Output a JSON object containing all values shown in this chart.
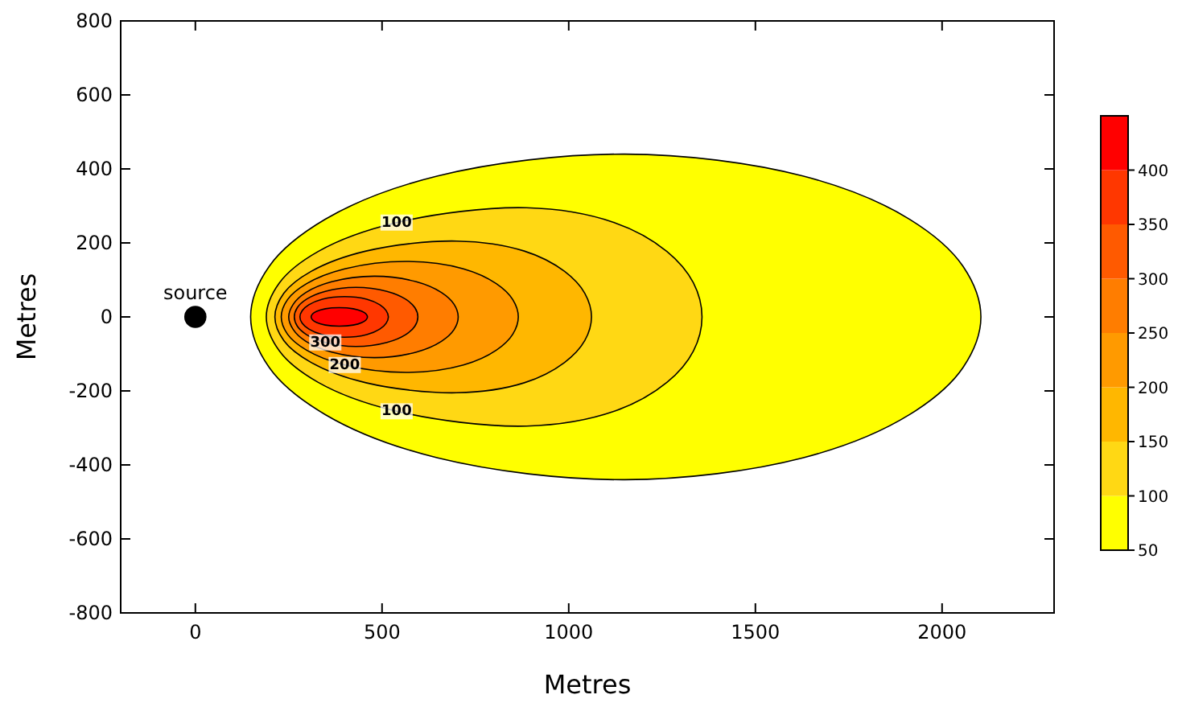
{
  "chart_data": {
    "type": "area",
    "xlabel": "Metres",
    "ylabel": "Metres",
    "xlim": [
      -200,
      2300
    ],
    "ylim": [
      -800,
      800
    ],
    "xticks": [
      0,
      500,
      1000,
      1500,
      2000
    ],
    "yticks": [
      -800,
      -600,
      -400,
      -200,
      0,
      200,
      400,
      600,
      800
    ],
    "clim": [
      50,
      450
    ],
    "cticks": [
      50,
      100,
      150,
      200,
      250,
      300,
      350,
      400
    ],
    "series": [
      {
        "color": "#ffff00",
        "x": [
          148,
          198,
          348,
          649,
          1150,
          1627,
          1913,
          2056,
          2104,
          2056,
          1913,
          1627,
          1150,
          649,
          348,
          198
        ],
        "values": [
          0,
          137,
          264,
          381,
          440,
          381,
          264,
          137,
          0,
          -137,
          -264,
          -381,
          -440,
          -381,
          -264,
          -137
        ]
      },
      {
        "color": "#ffd814",
        "x": [
          190,
          225,
          329,
          539,
          887,
          1122,
          1263,
          1334,
          1357,
          1334,
          1263,
          1122,
          887,
          539,
          329,
          225
        ],
        "values": [
          0,
          92,
          177,
          255,
          295,
          255,
          177,
          92,
          0,
          -92,
          -177,
          -255,
          -295,
          -255,
          -177,
          -92
        ]
      },
      {
        "color": "#ffb700",
        "x": [
          213,
          237,
          310,
          457,
          700,
          881,
          989,
          1043,
          1061,
          1043,
          989,
          881,
          700,
          457,
          310,
          237
        ],
        "values": [
          0,
          64,
          123,
          178,
          205,
          178,
          123,
          64,
          0,
          -64,
          -123,
          -178,
          -205,
          -178,
          -123,
          -64
        ]
      },
      {
        "color": "#ff9a00",
        "x": [
          230,
          247,
          298,
          400,
          570,
          718,
          806,
          850,
          865,
          850,
          806,
          718,
          570,
          400,
          298,
          247
        ],
        "values": [
          0,
          47,
          90,
          130,
          150,
          130,
          90,
          47,
          0,
          -47,
          -90,
          -130,
          -150,
          -130,
          -90,
          -47
        ]
      },
      {
        "color": "#ff7d00",
        "x": [
          250,
          262,
          296,
          365,
          480,
          592,
          659,
          693,
          704,
          693,
          659,
          592,
          480,
          365,
          296,
          262
        ],
        "values": [
          0,
          34,
          66,
          95,
          110,
          95,
          66,
          34,
          0,
          -34,
          -66,
          -95,
          -110,
          -95,
          -66,
          -34
        ]
      },
      {
        "color": "#ff5a00",
        "x": [
          265,
          273,
          298,
          348,
          430,
          513,
          563,
          588,
          596,
          588,
          563,
          513,
          430,
          348,
          298,
          273
        ],
        "values": [
          0,
          25,
          48,
          69,
          80,
          69,
          48,
          25,
          0,
          -25,
          -48,
          -69,
          -80,
          -69,
          -48,
          -25
        ]
      },
      {
        "color": "#ff3700",
        "x": [
          280,
          286,
          304,
          340,
          400,
          459,
          494,
          511,
          517,
          511,
          494,
          459,
          400,
          340,
          304,
          286
        ],
        "values": [
          0,
          17,
          33,
          48,
          55,
          48,
          33,
          17,
          0,
          -17,
          -33,
          -48,
          -55,
          -48,
          -33,
          -17
        ]
      },
      {
        "color": "#ff0000",
        "x": [
          310,
          314,
          325,
          348,
          385,
          423,
          446,
          457,
          461,
          457,
          446,
          423,
          385,
          348,
          325,
          314
        ],
        "values": [
          0,
          8,
          15,
          22,
          25,
          22,
          15,
          8,
          0,
          -8,
          -15,
          -22,
          -25,
          -22,
          -15,
          -8
        ]
      },
      {
        "type": "scatter",
        "name": "source",
        "color": "#000000",
        "marker": "circle",
        "x": [
          0
        ],
        "values": [
          0
        ]
      }
    ],
    "annotations": [
      {
        "text": "100",
        "x": 539,
        "y": 255
      },
      {
        "text": "300",
        "x": 348,
        "y": -69
      },
      {
        "text": "200",
        "x": 400,
        "y": -130
      },
      {
        "text": "100",
        "x": 539,
        "y": -255
      }
    ]
  }
}
